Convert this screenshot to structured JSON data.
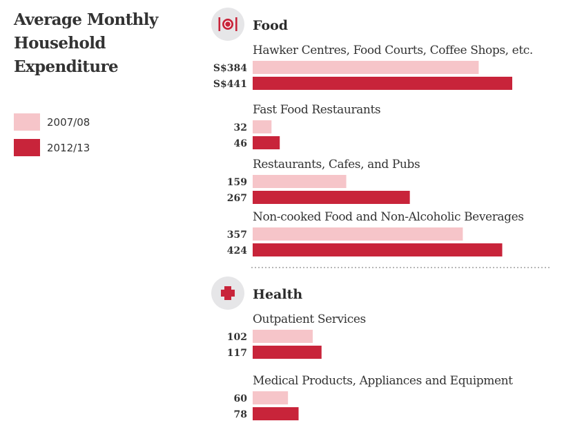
{
  "title": "Average Monthly Household Expenditure",
  "legend": [
    {
      "label": "2007/08",
      "color": "#f6c5c9"
    },
    {
      "label": "2012/13",
      "color": "#c8243a"
    }
  ],
  "colors": {
    "light": "#f6c5c9",
    "dark": "#c8243a",
    "icon_circle": "#e6e6e8"
  },
  "chart_data": {
    "type": "bar",
    "orientation": "horizontal",
    "series": [
      {
        "name": "2007/08"
      },
      {
        "name": "2012/13"
      }
    ],
    "sections": [
      {
        "title": "Food",
        "icon": "plate-cutlery-icon",
        "categories": [
          {
            "label": "Hawker Centres, Food Courts, Coffee Shops, etc.",
            "values": [
              384,
              441
            ],
            "value_labels": [
              "S$384",
              "S$441"
            ]
          },
          {
            "label": "Fast Food Restaurants",
            "values": [
              32,
              46
            ],
            "value_labels": [
              "32",
              "46"
            ]
          },
          {
            "label": "Restaurants, Cafes, and Pubs",
            "values": [
              159,
              267
            ],
            "value_labels": [
              "159",
              "267"
            ]
          },
          {
            "label": "Non-cooked Food and Non-Alcoholic Beverages",
            "values": [
              357,
              424
            ],
            "value_labels": [
              "357",
              "424"
            ]
          }
        ]
      },
      {
        "title": "Health",
        "icon": "medical-cross-icon",
        "categories": [
          {
            "label": "Outpatient Services",
            "values": [
              102,
              117
            ],
            "value_labels": [
              "102",
              "117"
            ]
          },
          {
            "label": "Medical Products, Appliances and Equipment",
            "values": [
              60,
              78
            ],
            "value_labels": [
              "60",
              "78"
            ]
          }
        ]
      }
    ]
  }
}
